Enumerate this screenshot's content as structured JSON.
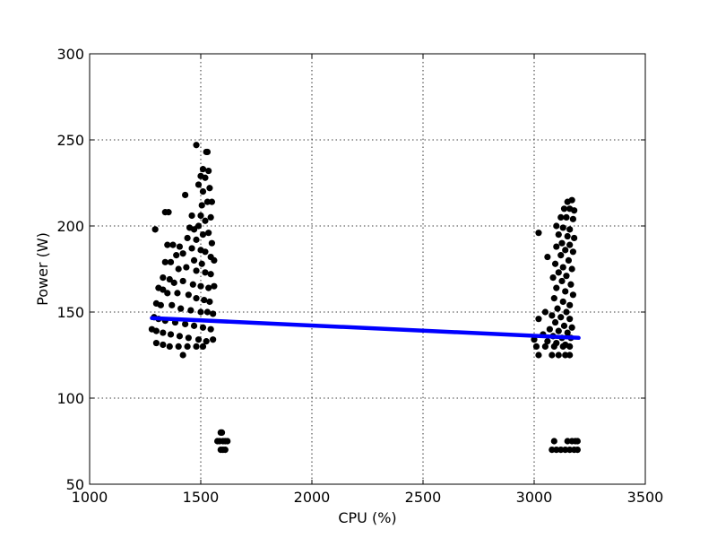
{
  "chart_data": {
    "type": "scatter",
    "xlabel": "CPU (%)",
    "ylabel": "Power (W)",
    "xlim": [
      1000,
      3500
    ],
    "ylim": [
      50,
      300
    ],
    "xticks": [
      "1000",
      "1500",
      "2000",
      "2500",
      "3000",
      "3500"
    ],
    "yticks": [
      "50",
      "100",
      "150",
      "200",
      "250",
      "300"
    ],
    "grid": true,
    "point_color": "#000000",
    "fit_color": "#0000ff",
    "series": [
      {
        "kind": "points",
        "points": [
          [
            1480,
            247
          ],
          [
            1525,
            243
          ],
          [
            1530,
            243
          ],
          [
            1510,
            233
          ],
          [
            1535,
            232
          ],
          [
            1500,
            229
          ],
          [
            1520,
            228
          ],
          [
            1540,
            222
          ],
          [
            1490,
            224
          ],
          [
            1510,
            220
          ],
          [
            1550,
            214
          ],
          [
            1430,
            218
          ],
          [
            1530,
            214
          ],
          [
            1505,
            212
          ],
          [
            1340,
            208
          ],
          [
            1355,
            208
          ],
          [
            1460,
            206
          ],
          [
            1500,
            206
          ],
          [
            1545,
            205
          ],
          [
            1520,
            203
          ],
          [
            1490,
            200
          ],
          [
            1295,
            198
          ],
          [
            1450,
            199
          ],
          [
            1470,
            198
          ],
          [
            1535,
            196
          ],
          [
            1510,
            195
          ],
          [
            1440,
            193
          ],
          [
            1480,
            192
          ],
          [
            1550,
            190
          ],
          [
            1350,
            189
          ],
          [
            1375,
            189
          ],
          [
            1405,
            188
          ],
          [
            1460,
            187
          ],
          [
            1500,
            186
          ],
          [
            1520,
            185
          ],
          [
            1420,
            184
          ],
          [
            1390,
            183
          ],
          [
            1545,
            182
          ],
          [
            1470,
            180
          ],
          [
            1340,
            179
          ],
          [
            1365,
            179
          ],
          [
            1560,
            180
          ],
          [
            1505,
            178
          ],
          [
            1435,
            176
          ],
          [
            1400,
            175
          ],
          [
            1480,
            174
          ],
          [
            1520,
            173
          ],
          [
            1545,
            172
          ],
          [
            1330,
            170
          ],
          [
            1360,
            169
          ],
          [
            1420,
            168
          ],
          [
            1380,
            167
          ],
          [
            1465,
            166
          ],
          [
            1500,
            165
          ],
          [
            1535,
            164
          ],
          [
            1560,
            165
          ],
          [
            1310,
            164
          ],
          [
            1330,
            163
          ],
          [
            1350,
            161
          ],
          [
            1395,
            161
          ],
          [
            1445,
            160
          ],
          [
            1480,
            158
          ],
          [
            1515,
            157
          ],
          [
            1540,
            156
          ],
          [
            1300,
            155
          ],
          [
            1320,
            154
          ],
          [
            1370,
            154
          ],
          [
            1410,
            152
          ],
          [
            1455,
            151
          ],
          [
            1500,
            150
          ],
          [
            1530,
            150
          ],
          [
            1555,
            149
          ],
          [
            1290,
            147
          ],
          [
            1310,
            146
          ],
          [
            1340,
            145
          ],
          [
            1385,
            144
          ],
          [
            1430,
            143
          ],
          [
            1470,
            142
          ],
          [
            1510,
            141
          ],
          [
            1545,
            140
          ],
          [
            1280,
            140
          ],
          [
            1300,
            139
          ],
          [
            1330,
            138
          ],
          [
            1365,
            137
          ],
          [
            1405,
            136
          ],
          [
            1445,
            135
          ],
          [
            1490,
            134
          ],
          [
            1525,
            133
          ],
          [
            1555,
            134
          ],
          [
            1300,
            132
          ],
          [
            1330,
            131
          ],
          [
            1360,
            130
          ],
          [
            1400,
            130
          ],
          [
            1440,
            130
          ],
          [
            1480,
            130
          ],
          [
            1510,
            130
          ],
          [
            1420,
            125
          ],
          [
            1590,
            80
          ],
          [
            1595,
            80
          ],
          [
            1575,
            75
          ],
          [
            1585,
            75
          ],
          [
            1600,
            75
          ],
          [
            1610,
            75
          ],
          [
            1620,
            75
          ],
          [
            1590,
            70
          ],
          [
            1600,
            70
          ],
          [
            1610,
            70
          ],
          [
            3170,
            215
          ],
          [
            3150,
            214
          ],
          [
            3135,
            210
          ],
          [
            3160,
            210
          ],
          [
            3180,
            209
          ],
          [
            3145,
            205
          ],
          [
            3120,
            205
          ],
          [
            3175,
            204
          ],
          [
            3100,
            200
          ],
          [
            3130,
            199
          ],
          [
            3160,
            198
          ],
          [
            3020,
            196
          ],
          [
            3110,
            195
          ],
          [
            3150,
            194
          ],
          [
            3180,
            193
          ],
          [
            3125,
            190
          ],
          [
            3160,
            189
          ],
          [
            3100,
            188
          ],
          [
            3140,
            186
          ],
          [
            3175,
            185
          ],
          [
            3120,
            183
          ],
          [
            3060,
            182
          ],
          [
            3155,
            180
          ],
          [
            3095,
            178
          ],
          [
            3130,
            176
          ],
          [
            3170,
            175
          ],
          [
            3110,
            173
          ],
          [
            3145,
            171
          ],
          [
            3085,
            170
          ],
          [
            3125,
            168
          ],
          [
            3165,
            166
          ],
          [
            3100,
            164
          ],
          [
            3140,
            162
          ],
          [
            3175,
            160
          ],
          [
            3090,
            158
          ],
          [
            3130,
            156
          ],
          [
            3160,
            154
          ],
          [
            3105,
            152
          ],
          [
            3145,
            150
          ],
          [
            3050,
            150
          ],
          [
            3080,
            148
          ],
          [
            3120,
            147
          ],
          [
            3160,
            146
          ],
          [
            3020,
            146
          ],
          [
            3095,
            144
          ],
          [
            3135,
            142
          ],
          [
            3170,
            141
          ],
          [
            3070,
            140
          ],
          [
            3110,
            139
          ],
          [
            3150,
            138
          ],
          [
            3040,
            137
          ],
          [
            3085,
            136
          ],
          [
            3125,
            135
          ],
          [
            3165,
            135
          ],
          [
            3000,
            134
          ],
          [
            3060,
            133
          ],
          [
            3100,
            132
          ],
          [
            3140,
            131
          ],
          [
            3010,
            130
          ],
          [
            3050,
            130
          ],
          [
            3090,
            130
          ],
          [
            3130,
            130
          ],
          [
            3160,
            130
          ],
          [
            3020,
            125
          ],
          [
            3080,
            125
          ],
          [
            3110,
            125
          ],
          [
            3140,
            125
          ],
          [
            3160,
            125
          ],
          [
            3090,
            75
          ],
          [
            3150,
            75
          ],
          [
            3170,
            75
          ],
          [
            3185,
            75
          ],
          [
            3195,
            75
          ],
          [
            3080,
            70
          ],
          [
            3100,
            70
          ],
          [
            3120,
            70
          ],
          [
            3140,
            70
          ],
          [
            3160,
            70
          ],
          [
            3180,
            70
          ],
          [
            3195,
            70
          ]
        ]
      },
      {
        "kind": "fit-line",
        "x": [
          1280,
          3200
        ],
        "y": [
          146.5,
          135
        ]
      }
    ]
  }
}
